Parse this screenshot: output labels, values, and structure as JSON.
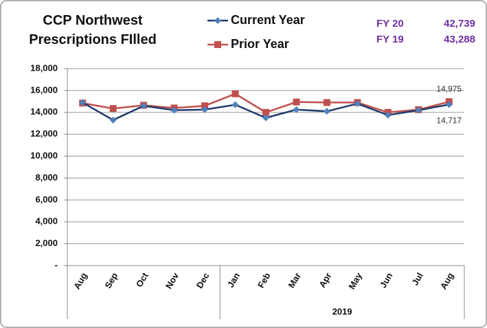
{
  "chart_data": {
    "type": "line",
    "title": "CCP Northwest Prescriptions FIlled",
    "categories": [
      "Aug",
      "Sep",
      "Oct",
      "Nov",
      "Dec",
      "Jan",
      "Feb",
      "Mar",
      "Apr",
      "May",
      "Jun",
      "Jul",
      "Aug"
    ],
    "groups": [
      {
        "label": "2019",
        "start": 5,
        "end": 12
      }
    ],
    "series": [
      {
        "name": "Current Year",
        "color": "#1f3b6e",
        "marker_color": "#4f81bd",
        "marker": "diamond",
        "values": [
          14900,
          13300,
          14600,
          14200,
          14250,
          14700,
          13500,
          14250,
          14100,
          14800,
          13750,
          14200,
          14717
        ],
        "value_labels": [
          null,
          null,
          null,
          null,
          null,
          null,
          null,
          null,
          null,
          null,
          null,
          null,
          "14,717"
        ]
      },
      {
        "name": "Prior Year",
        "color": "#c0504d",
        "marker_color": "#c0504d",
        "marker": "square",
        "values": [
          14850,
          14350,
          14650,
          14400,
          14600,
          15700,
          14000,
          14950,
          14900,
          14900,
          14000,
          14250,
          14975
        ],
        "value_labels": [
          null,
          null,
          null,
          null,
          null,
          null,
          null,
          null,
          null,
          null,
          null,
          null,
          "14,975"
        ]
      }
    ],
    "ylim": [
      0,
      18000
    ],
    "yticks": [
      {
        "value": 0,
        "label": "-"
      },
      {
        "value": 2000,
        "label": "2,000"
      },
      {
        "value": 4000,
        "label": "4,000"
      },
      {
        "value": 6000,
        "label": "6,000"
      },
      {
        "value": 8000,
        "label": "8,000"
      },
      {
        "value": 10000,
        "label": "10,000"
      },
      {
        "value": 12000,
        "label": "12,000"
      },
      {
        "value": 14000,
        "label": "14,000"
      },
      {
        "value": 16000,
        "label": "16,000"
      },
      {
        "value": 18000,
        "label": "18,000"
      }
    ],
    "grid": true,
    "summary": [
      {
        "label": "FY 20",
        "value": "42,739"
      },
      {
        "label": "FY 19",
        "value": "43,288"
      }
    ]
  }
}
